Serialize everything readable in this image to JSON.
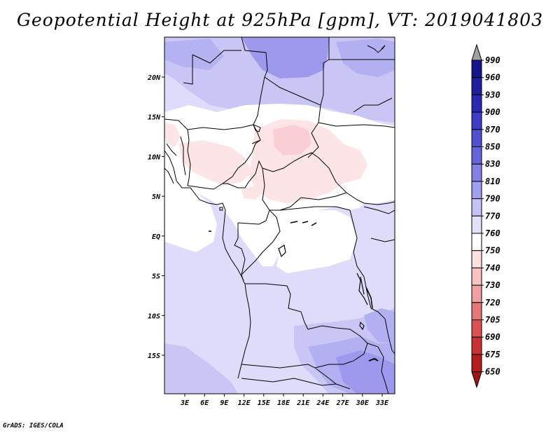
{
  "title": "Geopotential Height at 925hPa [gpm], VT: 2019041803",
  "credit": "GrADS: IGES/COLA",
  "map": {
    "variable": "Geopotential Height",
    "level": "925hPa",
    "units": "gpm",
    "valid_time": "2019041803",
    "lat_labels": [
      "20N",
      "15N",
      "10N",
      "5N",
      "EQ",
      "5S",
      "10S",
      "15S"
    ],
    "lat_values": [
      20,
      15,
      10,
      5,
      0,
      -5,
      -10,
      -15
    ],
    "lon_labels": [
      "3E",
      "6E",
      "9E",
      "12E",
      "15E",
      "18E",
      "21E",
      "24E",
      "27E",
      "30E",
      "33E"
    ],
    "lon_values": [
      3,
      6,
      9,
      12,
      15,
      18,
      21,
      24,
      27,
      30,
      33
    ]
  },
  "colorbar": {
    "labels": [
      "990",
      "960",
      "930",
      "900",
      "870",
      "850",
      "830",
      "810",
      "790",
      "770",
      "760",
      "750",
      "740",
      "730",
      "720",
      "705",
      "690",
      "675",
      "650"
    ],
    "colors": [
      "#14148c",
      "#1e1ea0",
      "#2828b4",
      "#3c3cc8",
      "#5050d2",
      "#6464dc",
      "#8282e6",
      "#a0a0f0",
      "#c3c3f8",
      "#e1e1fc",
      "#ffffff",
      "#ffe1e1",
      "#fac3c3",
      "#f0a0a0",
      "#e67878",
      "#dc5050",
      "#c83232",
      "#b41e1e",
      "#a01414"
    ],
    "top_arrow_color": "#a0a0a0",
    "bottom_arrow_color": "#a01414"
  },
  "colors": {
    "background": "#ffffff",
    "border": "#000000"
  }
}
